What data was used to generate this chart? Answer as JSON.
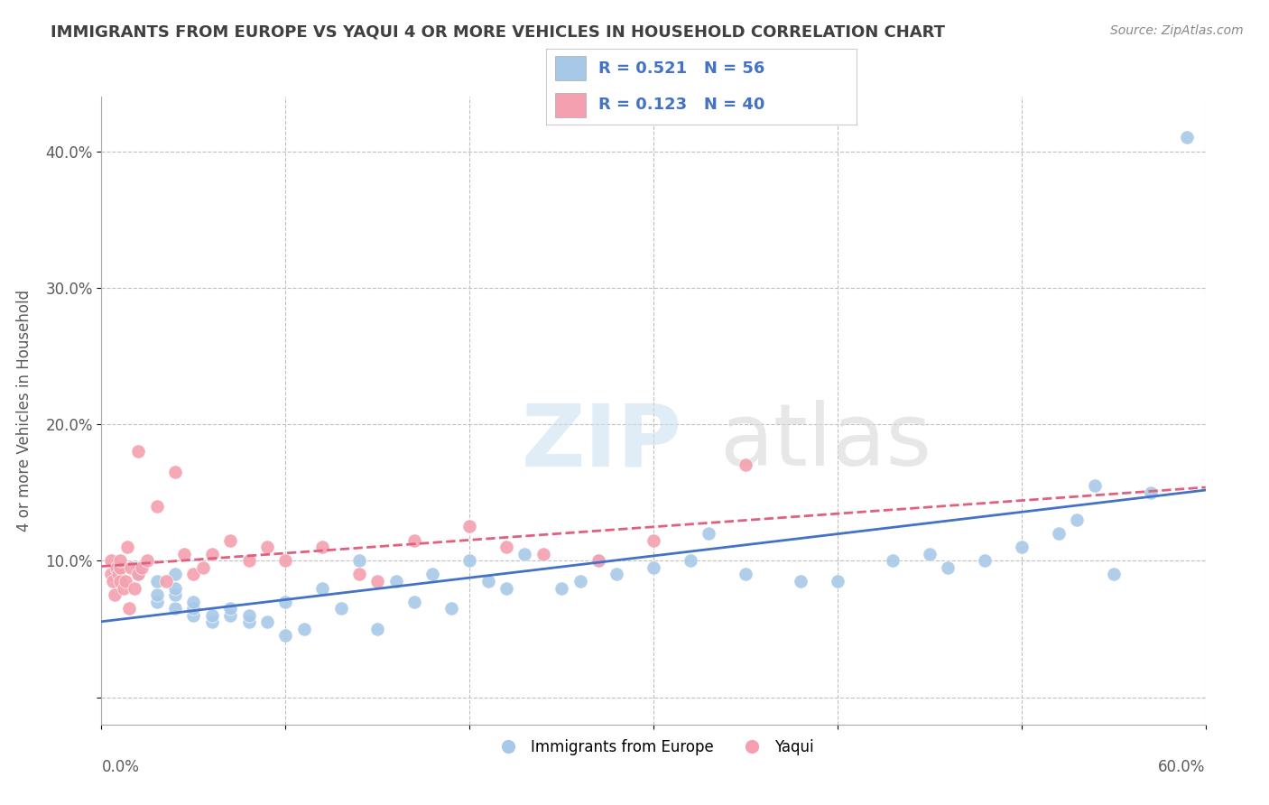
{
  "title": "IMMIGRANTS FROM EUROPE VS YAQUI 4 OR MORE VEHICLES IN HOUSEHOLD CORRELATION CHART",
  "source": "Source: ZipAtlas.com",
  "ylabel": "4 or more Vehicles in Household",
  "ytick_values": [
    0.0,
    0.1,
    0.2,
    0.3,
    0.4
  ],
  "ytick_labels": [
    "",
    "10.0%",
    "20.0%",
    "30.0%",
    "40.0%"
  ],
  "xlim": [
    0.0,
    0.6
  ],
  "ylim": [
    -0.02,
    0.44
  ],
  "legend_blue_R": "R = 0.521",
  "legend_blue_N": "N = 56",
  "legend_pink_R": "R = 0.123",
  "legend_pink_N": "N = 40",
  "blue_color": "#a8c8e8",
  "pink_color": "#f4a0b0",
  "blue_line_color": "#4472c4",
  "pink_line_color": "#e06080",
  "legend_text_color": "#4472c4",
  "title_color": "#404040",
  "blue_scatter_x": [
    0.01,
    0.02,
    0.02,
    0.03,
    0.03,
    0.03,
    0.04,
    0.04,
    0.04,
    0.04,
    0.05,
    0.05,
    0.05,
    0.06,
    0.06,
    0.07,
    0.07,
    0.08,
    0.08,
    0.09,
    0.1,
    0.1,
    0.11,
    0.12,
    0.13,
    0.14,
    0.15,
    0.16,
    0.17,
    0.18,
    0.19,
    0.2,
    0.21,
    0.22,
    0.23,
    0.25,
    0.26,
    0.27,
    0.28,
    0.3,
    0.32,
    0.33,
    0.35,
    0.38,
    0.4,
    0.43,
    0.45,
    0.46,
    0.48,
    0.5,
    0.52,
    0.53,
    0.54,
    0.55,
    0.57,
    0.59
  ],
  "blue_scatter_y": [
    0.085,
    0.09,
    0.095,
    0.07,
    0.075,
    0.085,
    0.065,
    0.075,
    0.08,
    0.09,
    0.06,
    0.065,
    0.07,
    0.055,
    0.06,
    0.06,
    0.065,
    0.055,
    0.06,
    0.055,
    0.045,
    0.07,
    0.05,
    0.08,
    0.065,
    0.1,
    0.05,
    0.085,
    0.07,
    0.09,
    0.065,
    0.1,
    0.085,
    0.08,
    0.105,
    0.08,
    0.085,
    0.1,
    0.09,
    0.095,
    0.1,
    0.12,
    0.09,
    0.085,
    0.085,
    0.1,
    0.105,
    0.095,
    0.1,
    0.11,
    0.12,
    0.13,
    0.155,
    0.09,
    0.15,
    0.41
  ],
  "pink_scatter_x": [
    0.005,
    0.005,
    0.006,
    0.007,
    0.008,
    0.009,
    0.01,
    0.01,
    0.01,
    0.012,
    0.013,
    0.014,
    0.015,
    0.016,
    0.018,
    0.02,
    0.02,
    0.022,
    0.025,
    0.03,
    0.035,
    0.04,
    0.045,
    0.05,
    0.055,
    0.06,
    0.07,
    0.08,
    0.09,
    0.1,
    0.12,
    0.14,
    0.15,
    0.17,
    0.2,
    0.22,
    0.24,
    0.27,
    0.3,
    0.35
  ],
  "pink_scatter_y": [
    0.09,
    0.1,
    0.085,
    0.075,
    0.095,
    0.09,
    0.085,
    0.095,
    0.1,
    0.08,
    0.085,
    0.11,
    0.065,
    0.095,
    0.08,
    0.18,
    0.09,
    0.095,
    0.1,
    0.14,
    0.085,
    0.165,
    0.105,
    0.09,
    0.095,
    0.105,
    0.115,
    0.1,
    0.11,
    0.1,
    0.11,
    0.09,
    0.085,
    0.115,
    0.125,
    0.11,
    0.105,
    0.1,
    0.115,
    0.17
  ]
}
